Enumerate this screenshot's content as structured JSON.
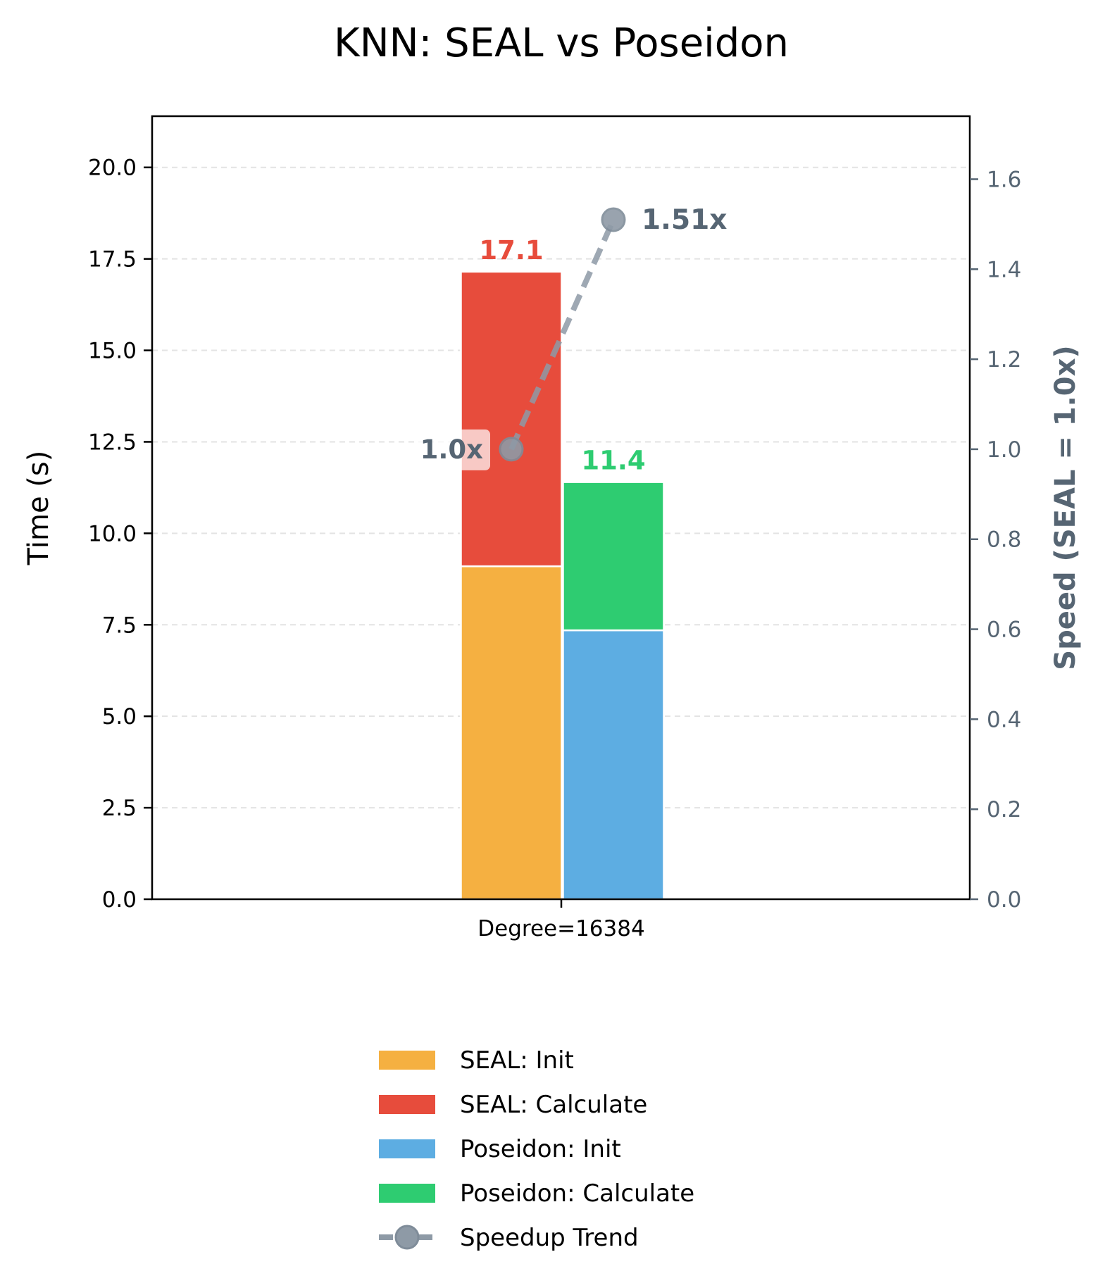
{
  "chart_data": {
    "type": "bar",
    "title": "KNN: SEAL vs Poseidon",
    "categories": [
      "Degree=16384"
    ],
    "ylabel": "Time (s)",
    "ylabel_right": "Speed (SEAL = 1.0x)",
    "ylim": [
      0,
      21.4
    ],
    "ylim_right": [
      0,
      1.74
    ],
    "yticks": [
      "0.0",
      "2.5",
      "5.0",
      "7.5",
      "10.0",
      "12.5",
      "15.0",
      "17.5",
      "20.0"
    ],
    "yticks_right": [
      "0.0",
      "0.2",
      "0.4",
      "0.6",
      "0.8",
      "1.0",
      "1.2",
      "1.4",
      "1.6"
    ],
    "grid": "y, dashed",
    "stacks": [
      {
        "name": "SEAL",
        "total_label": "17.1",
        "total_color": "#e74c3c",
        "segments": [
          {
            "name": "SEAL: Init",
            "value": 9.1,
            "color": "#f5b041"
          },
          {
            "name": "SEAL: Calculate",
            "value": 8.05,
            "color": "#e74c3c"
          }
        ]
      },
      {
        "name": "Poseidon",
        "total_label": "11.4",
        "total_color": "#2ecc71",
        "segments": [
          {
            "name": "Poseidon: Init",
            "value": 7.35,
            "color": "#5dade2"
          },
          {
            "name": "Poseidon: Calculate",
            "value": 4.05,
            "color": "#2ecc71"
          }
        ]
      }
    ],
    "speedup": {
      "name": "Speedup Trend",
      "values": [
        1.0,
        1.51
      ],
      "labels": [
        "1.0x",
        "1.51x"
      ],
      "color": "#8e9aa6"
    },
    "legend": {
      "placement": "bottom-center",
      "entries": [
        "SEAL: Init",
        "SEAL: Calculate",
        "Poseidon: Init",
        "Poseidon: Calculate",
        "Speedup Trend"
      ]
    }
  }
}
